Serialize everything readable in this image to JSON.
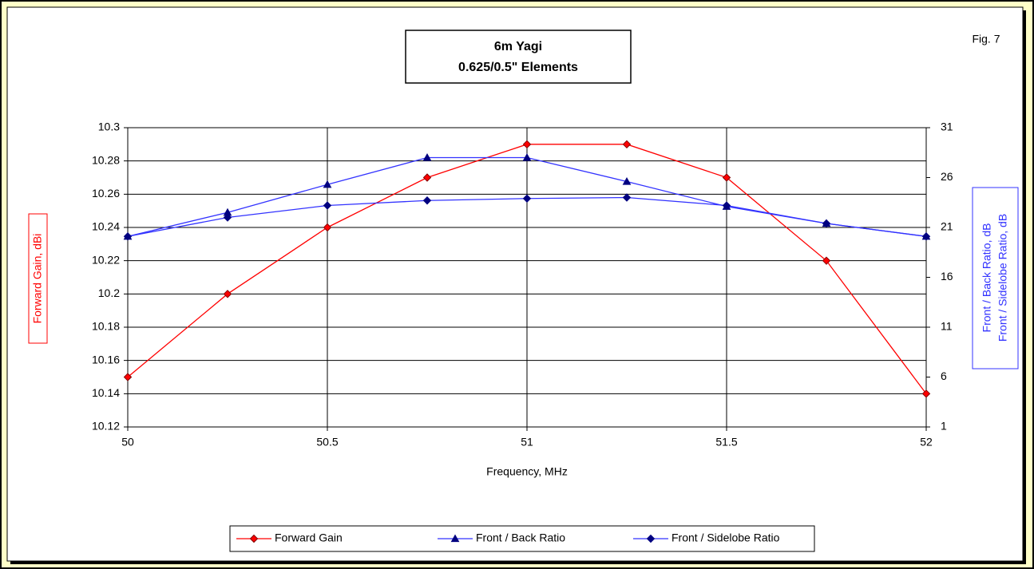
{
  "chart_data": {
    "type": "line",
    "title": "6m Yagi",
    "subtitle": "0.625/0.5\" Elements",
    "annotation": "Fig. 7",
    "xlabel": "Frequency, MHz",
    "ylabel": "Forward Gain, dBi",
    "y2label": [
      "Front / Back Ratio, dB",
      "Front / Sidelobe Ratio, dB"
    ],
    "x": [
      50,
      50.25,
      50.5,
      50.75,
      51,
      51.25,
      51.5,
      51.75,
      52
    ],
    "xlim": [
      50,
      52
    ],
    "xticks": [
      50,
      50.5,
      51,
      51.5,
      52
    ],
    "ylim": [
      10.12,
      10.3
    ],
    "yticks": [
      10.12,
      10.14,
      10.16,
      10.18,
      10.2,
      10.22,
      10.24,
      10.26,
      10.28,
      10.3
    ],
    "y2lim": [
      1,
      31
    ],
    "y2ticks": [
      1,
      6,
      11,
      16,
      21,
      26,
      31
    ],
    "grid": true,
    "legend": "bottom",
    "series": [
      {
        "name": "Forward Gain",
        "color": "#ff0000",
        "marker": "diamond",
        "values": [
          10.15,
          10.2,
          10.24,
          10.27,
          10.29,
          10.29,
          10.27,
          10.22,
          10.14
        ]
      },
      {
        "name": "Front / Back Ratio",
        "color": "#3333ff",
        "marker": "triangle",
        "axis": "y2",
        "values": [
          20.1,
          22.5,
          25.3,
          28.0,
          28.0,
          25.6,
          23.1,
          21.4,
          20.1
        ]
      },
      {
        "name": "Front / Sidelobe Ratio",
        "color": "#3333ff",
        "marker": "diamond",
        "axis": "y2",
        "values": [
          20.1,
          22.0,
          23.2,
          23.7,
          23.9,
          24.0,
          23.2,
          21.4,
          20.1
        ]
      }
    ]
  }
}
